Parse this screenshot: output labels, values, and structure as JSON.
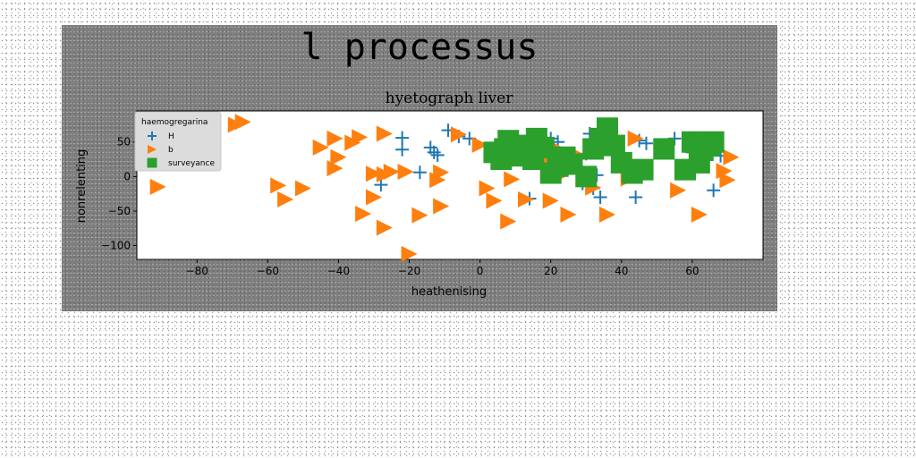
{
  "figure_title": "l processus",
  "chart_data": {
    "type": "scatter",
    "title": "hyetograph liver",
    "xlabel": "heathenising",
    "ylabel": "nonrelenting",
    "xlim": [
      -97,
      80
    ],
    "ylim": [
      -120,
      95
    ],
    "xticks": [
      -80,
      -60,
      -40,
      -20,
      0,
      20,
      40,
      60
    ],
    "yticks": [
      -100,
      -50,
      0,
      50
    ],
    "grid": false,
    "legend": {
      "title": "haemogregarina",
      "position": "top-left"
    },
    "series": [
      {
        "name": "H",
        "marker": "plus",
        "color": "#1f77b4",
        "points": [
          [
            -22,
            56
          ],
          [
            -22,
            39
          ],
          [
            -28,
            -12
          ],
          [
            -17,
            6
          ],
          [
            -14,
            42
          ],
          [
            -13,
            35
          ],
          [
            -12,
            31
          ],
          [
            -9,
            67
          ],
          [
            -6,
            58
          ],
          [
            -3,
            55
          ],
          [
            14,
            -32
          ],
          [
            20,
            55
          ],
          [
            22,
            50
          ],
          [
            29,
            -10
          ],
          [
            30,
            0
          ],
          [
            30,
            33
          ],
          [
            31,
            62
          ],
          [
            32,
            -17
          ],
          [
            33,
            2
          ],
          [
            34,
            -30
          ],
          [
            44,
            -30
          ],
          [
            45,
            52
          ],
          [
            47,
            48
          ],
          [
            55,
            55
          ],
          [
            60,
            35
          ],
          [
            66,
            -20
          ],
          [
            68,
            30
          ]
        ]
      },
      {
        "name": "b",
        "marker": "triangle-right",
        "color": "#ff7f0e",
        "points": [
          [
            -91,
            -15
          ],
          [
            -69,
            75
          ],
          [
            -67,
            79
          ],
          [
            -57,
            -13
          ],
          [
            -55,
            -33
          ],
          [
            -50,
            -17
          ],
          [
            -45,
            42
          ],
          [
            -41,
            55
          ],
          [
            -40,
            28
          ],
          [
            -41,
            12
          ],
          [
            -36,
            49
          ],
          [
            -34,
            57
          ],
          [
            -33,
            -54
          ],
          [
            -30,
            -30
          ],
          [
            -30,
            4
          ],
          [
            -27,
            62
          ],
          [
            -27,
            3
          ],
          [
            -27,
            -74
          ],
          [
            -25,
            7
          ],
          [
            -21,
            7
          ],
          [
            -20,
            -112
          ],
          [
            -17,
            -56
          ],
          [
            -12,
            -5
          ],
          [
            -11,
            6
          ],
          [
            -11,
            -43
          ],
          [
            -6,
            61
          ],
          [
            0,
            46
          ],
          [
            2,
            -17
          ],
          [
            4,
            -35
          ],
          [
            8,
            -65
          ],
          [
            9,
            37
          ],
          [
            9,
            -4
          ],
          [
            13,
            -33
          ],
          [
            18,
            52
          ],
          [
            19,
            22
          ],
          [
            20,
            -35
          ],
          [
            22,
            40
          ],
          [
            24,
            5
          ],
          [
            25,
            -55
          ],
          [
            28,
            30
          ],
          [
            32,
            -16
          ],
          [
            36,
            -55
          ],
          [
            42,
            -3
          ],
          [
            44,
            55
          ],
          [
            56,
            -20
          ],
          [
            62,
            -55
          ],
          [
            69,
            8
          ],
          [
            70,
            -5
          ],
          [
            71,
            28
          ]
        ]
      },
      {
        "name": "surveyance",
        "marker": "square",
        "color": "#2ca02c",
        "points": [
          [
            4,
            35
          ],
          [
            6,
            25
          ],
          [
            7,
            40
          ],
          [
            8,
            52
          ],
          [
            10,
            30
          ],
          [
            13,
            45
          ],
          [
            15,
            25
          ],
          [
            16,
            55
          ],
          [
            18,
            42
          ],
          [
            20,
            5
          ],
          [
            22,
            15
          ],
          [
            24,
            28
          ],
          [
            26,
            18
          ],
          [
            30,
            0
          ],
          [
            32,
            40
          ],
          [
            34,
            55
          ],
          [
            36,
            70
          ],
          [
            38,
            45
          ],
          [
            40,
            20
          ],
          [
            43,
            5
          ],
          [
            46,
            10
          ],
          [
            52,
            40
          ],
          [
            58,
            10
          ],
          [
            60,
            50
          ],
          [
            62,
            20
          ],
          [
            63,
            38
          ],
          [
            65,
            45
          ],
          [
            66,
            50
          ]
        ]
      }
    ]
  }
}
